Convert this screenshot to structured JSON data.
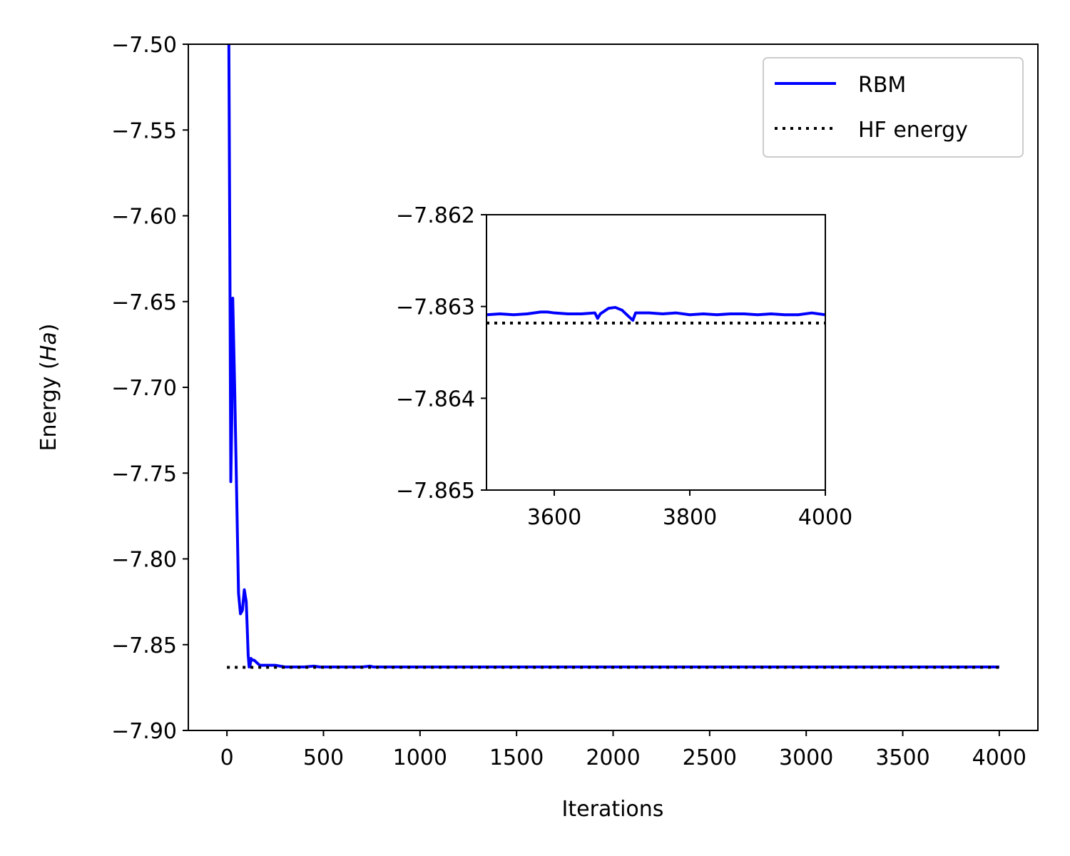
{
  "chart_data": [
    {
      "type": "line",
      "panel": "main",
      "xlabel": "Iterations",
      "ylabel_prefix": "Energy (",
      "ylabel_unit": "Ha",
      "ylabel_suffix": ")",
      "xlim": [
        -200,
        4200
      ],
      "ylim": [
        -7.9,
        -7.5
      ],
      "xticks": [
        0,
        500,
        1000,
        1500,
        2000,
        2500,
        3000,
        3500,
        4000
      ],
      "xtick_labels": [
        "0",
        "500",
        "1000",
        "1500",
        "2000",
        "2500",
        "3000",
        "3500",
        "4000"
      ],
      "yticks": [
        -7.5,
        -7.55,
        -7.6,
        -7.65,
        -7.7,
        -7.75,
        -7.8,
        -7.85,
        -7.9
      ],
      "ytick_labels": [
        "−7.50",
        "−7.55",
        "−7.60",
        "−7.65",
        "−7.70",
        "−7.75",
        "−7.80",
        "−7.85",
        "−7.90"
      ],
      "grid": false,
      "legend_position": "top-right",
      "series": [
        {
          "name": "RBM",
          "color": "#0000ff",
          "style": "solid",
          "x": [
            10,
            15,
            20,
            25,
            30,
            40,
            50,
            60,
            70,
            80,
            90,
            100,
            105,
            110,
            115,
            120,
            125,
            130,
            140,
            150,
            160,
            170,
            200,
            250,
            300,
            350,
            400,
            450,
            480,
            500,
            600,
            700,
            740,
            760,
            800,
            1000,
            1100,
            1200,
            1500,
            2000,
            2350,
            2400,
            2600,
            2650,
            3000,
            3100,
            3500,
            4000
          ],
          "y": [
            -7.5,
            -7.62,
            -7.755,
            -7.72,
            -7.648,
            -7.7,
            -7.76,
            -7.82,
            -7.832,
            -7.83,
            -7.818,
            -7.825,
            -7.84,
            -7.856,
            -7.863,
            -7.862,
            -7.858,
            -7.859,
            -7.859,
            -7.86,
            -7.861,
            -7.862,
            -7.862,
            -7.862,
            -7.863,
            -7.863,
            -7.863,
            -7.8625,
            -7.863,
            -7.863,
            -7.863,
            -7.863,
            -7.8625,
            -7.863,
            -7.863,
            -7.863,
            -7.863,
            -7.863,
            -7.863,
            -7.863,
            -7.863,
            -7.863,
            -7.863,
            -7.863,
            -7.863,
            -7.863,
            -7.863,
            -7.863
          ]
        },
        {
          "name": "HF energy",
          "color": "#000000",
          "style": "dotted",
          "x": [
            0,
            4000
          ],
          "y": [
            -7.8632,
            -7.8632
          ]
        }
      ]
    },
    {
      "type": "line",
      "panel": "inset",
      "xlim": [
        3500,
        4000
      ],
      "ylim": [
        -7.865,
        -7.862
      ],
      "xticks": [
        3600,
        3800,
        4000
      ],
      "xtick_labels": [
        "3600",
        "3800",
        "4000"
      ],
      "yticks": [
        -7.862,
        -7.863,
        -7.864,
        -7.865
      ],
      "ytick_labels": [
        "−7.862",
        "−7.863",
        "−7.864",
        "−7.865"
      ],
      "grid": false,
      "series": [
        {
          "color": "#0000ff",
          "style": "solid",
          "x": [
            3500,
            3520,
            3540,
            3560,
            3580,
            3590,
            3600,
            3620,
            3640,
            3660,
            3664,
            3668,
            3680,
            3690,
            3700,
            3710,
            3716,
            3720,
            3740,
            3760,
            3780,
            3800,
            3820,
            3840,
            3860,
            3880,
            3900,
            3920,
            3940,
            3960,
            3980,
            4000
          ],
          "y": [
            -7.86309,
            -7.86308,
            -7.86309,
            -7.86308,
            -7.86306,
            -7.86306,
            -7.86307,
            -7.86308,
            -7.86308,
            -7.86307,
            -7.86313,
            -7.86308,
            -7.86302,
            -7.86301,
            -7.86304,
            -7.86311,
            -7.86315,
            -7.86307,
            -7.86307,
            -7.86308,
            -7.86307,
            -7.86309,
            -7.86308,
            -7.86309,
            -7.86308,
            -7.86308,
            -7.86309,
            -7.86308,
            -7.86309,
            -7.86309,
            -7.86307,
            -7.86309
          ]
        },
        {
          "color": "#000000",
          "style": "dotted",
          "x": [
            3500,
            4000
          ],
          "y": [
            -7.86318,
            -7.86318
          ]
        }
      ]
    }
  ]
}
